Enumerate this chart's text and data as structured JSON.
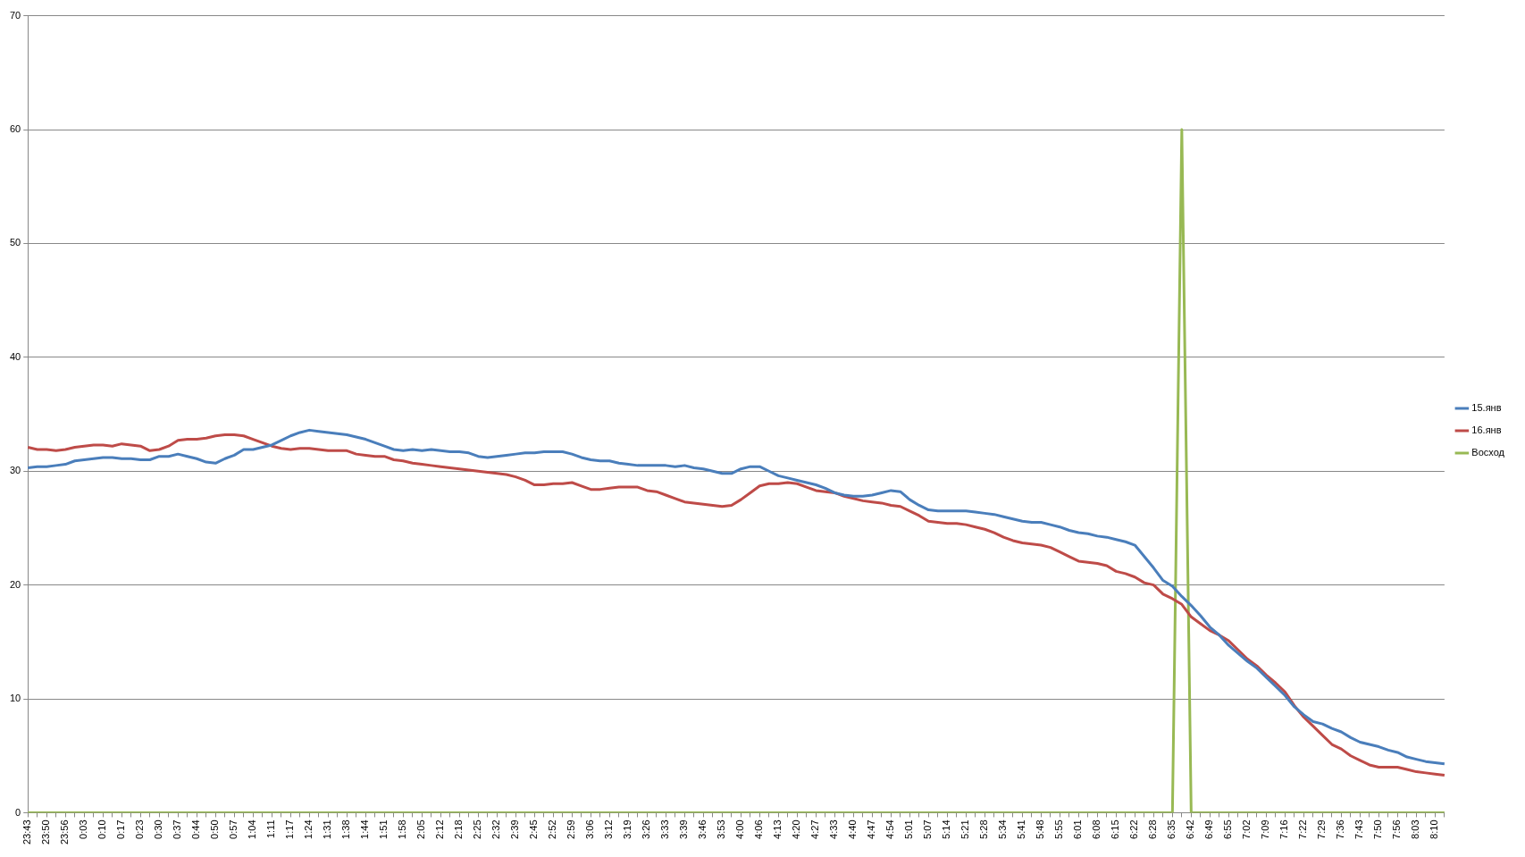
{
  "chart_data": {
    "type": "line",
    "categories": [
      "23:43",
      null,
      "23:50",
      null,
      "23:56",
      null,
      "0:03",
      null,
      "0:10",
      null,
      "0:17",
      null,
      "0:23",
      null,
      "0:30",
      null,
      "0:37",
      null,
      "0:44",
      null,
      "0:50",
      null,
      "0:57",
      null,
      "1:04",
      null,
      "1:11",
      null,
      "1:17",
      null,
      "1:24",
      null,
      "1:31",
      null,
      "1:38",
      null,
      "1:44",
      null,
      "1:51",
      null,
      "1:58",
      null,
      "2:05",
      null,
      "2:12",
      null,
      "2:18",
      null,
      "2:25",
      null,
      "2:32",
      null,
      "2:39",
      null,
      "2:45",
      null,
      "2:52",
      null,
      "2:59",
      null,
      "3:06",
      null,
      "3:12",
      null,
      "3:19",
      null,
      "3:26",
      null,
      "3:33",
      null,
      "3:39",
      null,
      "3:46",
      null,
      "3:53",
      null,
      "4:00",
      null,
      "4:06",
      null,
      "4:13",
      null,
      "4:20",
      null,
      "4:27",
      null,
      "4:33",
      null,
      "4:40",
      null,
      "4:47",
      null,
      "4:54",
      null,
      "5:01",
      null,
      "5:07",
      null,
      "5:14",
      null,
      "5:21",
      null,
      "5:28",
      null,
      "5:34",
      null,
      "5:41",
      null,
      "5:48",
      null,
      "5:55",
      null,
      "6:01",
      null,
      "6:08",
      null,
      "6:15",
      null,
      "6:22",
      null,
      "6:28",
      null,
      "6:35",
      null,
      "6:42",
      null,
      "6:49",
      null,
      "6:55",
      null,
      "7:02",
      null,
      "7:09",
      null,
      "7:16",
      null,
      "7:22",
      null,
      "7:29",
      null,
      "7:36",
      null,
      "7:43",
      null,
      "7:50",
      null,
      "7:56",
      null,
      "8:03",
      null,
      "8:10",
      null
    ],
    "series": [
      {
        "name": "15.янв",
        "color": "#4a7ebb",
        "values": [
          30.3,
          30.4,
          30.4,
          30.5,
          30.6,
          30.9,
          31.0,
          31.1,
          31.2,
          31.2,
          31.1,
          31.1,
          31.0,
          31.0,
          31.3,
          31.3,
          31.5,
          31.3,
          31.1,
          30.8,
          30.7,
          31.1,
          31.4,
          31.9,
          31.9,
          32.1,
          32.3,
          32.7,
          33.1,
          33.4,
          33.6,
          33.5,
          33.4,
          33.3,
          33.2,
          33.0,
          32.8,
          32.5,
          32.2,
          31.9,
          31.8,
          31.9,
          31.8,
          31.9,
          31.8,
          31.7,
          31.7,
          31.6,
          31.3,
          31.2,
          31.3,
          31.4,
          31.5,
          31.6,
          31.6,
          31.7,
          31.7,
          31.7,
          31.5,
          31.2,
          31.0,
          30.9,
          30.9,
          30.7,
          30.6,
          30.5,
          30.5,
          30.5,
          30.5,
          30.4,
          30.5,
          30.3,
          30.2,
          30.0,
          29.8,
          29.8,
          30.2,
          30.4,
          30.4,
          30.0,
          29.6,
          29.4,
          29.2,
          29.0,
          28.8,
          28.5,
          28.1,
          27.9,
          27.8,
          27.8,
          27.9,
          28.1,
          28.3,
          28.2,
          27.5,
          27.0,
          26.6,
          26.5,
          26.5,
          26.5,
          26.5,
          26.4,
          26.3,
          26.2,
          26.0,
          25.8,
          25.6,
          25.5,
          25.5,
          25.3,
          25.1,
          24.8,
          24.6,
          24.5,
          24.3,
          24.2,
          24.0,
          23.8,
          23.5,
          22.5,
          21.5,
          20.4,
          19.9,
          19.0,
          18.2,
          17.3,
          16.3,
          15.6,
          14.7,
          14.0,
          13.3,
          12.7,
          11.9,
          11.1,
          10.3,
          9.3,
          8.6,
          8.0,
          7.8,
          7.4,
          7.1,
          6.6,
          6.2,
          6.0,
          5.8,
          5.5,
          5.3,
          4.9,
          4.7,
          4.5,
          4.4,
          4.3
        ]
      },
      {
        "name": "16.янв",
        "color": "#be4b48",
        "values": [
          32.1,
          31.9,
          31.9,
          31.8,
          31.9,
          32.1,
          32.2,
          32.3,
          32.3,
          32.2,
          32.4,
          32.3,
          32.2,
          31.8,
          31.9,
          32.2,
          32.7,
          32.8,
          32.8,
          32.9,
          33.1,
          33.2,
          33.2,
          33.1,
          32.8,
          32.5,
          32.2,
          32.0,
          31.9,
          32.0,
          32.0,
          31.9,
          31.8,
          31.8,
          31.8,
          31.5,
          31.4,
          31.3,
          31.3,
          31.0,
          30.9,
          30.7,
          30.6,
          30.5,
          30.4,
          30.3,
          30.2,
          30.1,
          30.0,
          29.9,
          29.8,
          29.7,
          29.5,
          29.2,
          28.8,
          28.8,
          28.9,
          28.9,
          29.0,
          28.7,
          28.4,
          28.4,
          28.5,
          28.6,
          28.6,
          28.6,
          28.3,
          28.2,
          27.9,
          27.6,
          27.3,
          27.2,
          27.1,
          27.0,
          26.9,
          27.0,
          27.5,
          28.1,
          28.7,
          28.9,
          28.9,
          29.0,
          28.9,
          28.6,
          28.3,
          28.2,
          28.1,
          27.8,
          27.6,
          27.4,
          27.3,
          27.2,
          27.0,
          26.9,
          26.5,
          26.1,
          25.6,
          25.5,
          25.4,
          25.4,
          25.3,
          25.1,
          24.9,
          24.6,
          24.2,
          23.9,
          23.7,
          23.6,
          23.5,
          23.3,
          22.9,
          22.5,
          22.1,
          22.0,
          21.9,
          21.7,
          21.2,
          21.0,
          20.7,
          20.2,
          20.0,
          19.2,
          18.8,
          18.3,
          17.2,
          16.6,
          16.0,
          15.6,
          15.1,
          14.3,
          13.5,
          12.9,
          12.1,
          11.4,
          10.6,
          9.4,
          8.4,
          7.6,
          6.8,
          6.0,
          5.6,
          5.0,
          4.6,
          4.2,
          4.0,
          4.0,
          4.0,
          3.8,
          3.6,
          3.5,
          3.4,
          3.3
        ]
      },
      {
        "name": "Восход",
        "color": "#98b954",
        "values": [
          0,
          0,
          0,
          0,
          0,
          0,
          0,
          0,
          0,
          0,
          0,
          0,
          0,
          0,
          0,
          0,
          0,
          0,
          0,
          0,
          0,
          0,
          0,
          0,
          0,
          0,
          0,
          0,
          0,
          0,
          0,
          0,
          0,
          0,
          0,
          0,
          0,
          0,
          0,
          0,
          0,
          0,
          0,
          0,
          0,
          0,
          0,
          0,
          0,
          0,
          0,
          0,
          0,
          0,
          0,
          0,
          0,
          0,
          0,
          0,
          0,
          0,
          0,
          0,
          0,
          0,
          0,
          0,
          0,
          0,
          0,
          0,
          0,
          0,
          0,
          0,
          0,
          0,
          0,
          0,
          0,
          0,
          0,
          0,
          0,
          0,
          0,
          0,
          0,
          0,
          0,
          0,
          0,
          0,
          0,
          0,
          0,
          0,
          0,
          0,
          0,
          0,
          0,
          0,
          0,
          0,
          0,
          0,
          0,
          0,
          0,
          0,
          0,
          0,
          0,
          0,
          0,
          0,
          0,
          0,
          0,
          0,
          0,
          60,
          0,
          0,
          0,
          0,
          0,
          0,
          0,
          0,
          0,
          0,
          0,
          0,
          0,
          0,
          0,
          0,
          0,
          0,
          0,
          0,
          0,
          0,
          0,
          0,
          0,
          0,
          0,
          0
        ]
      }
    ],
    "ylim": [
      0,
      70
    ],
    "yticks": [
      0,
      10,
      20,
      30,
      40,
      50,
      60,
      70
    ],
    "grid": "y",
    "legend": "right",
    "marker": "none"
  }
}
